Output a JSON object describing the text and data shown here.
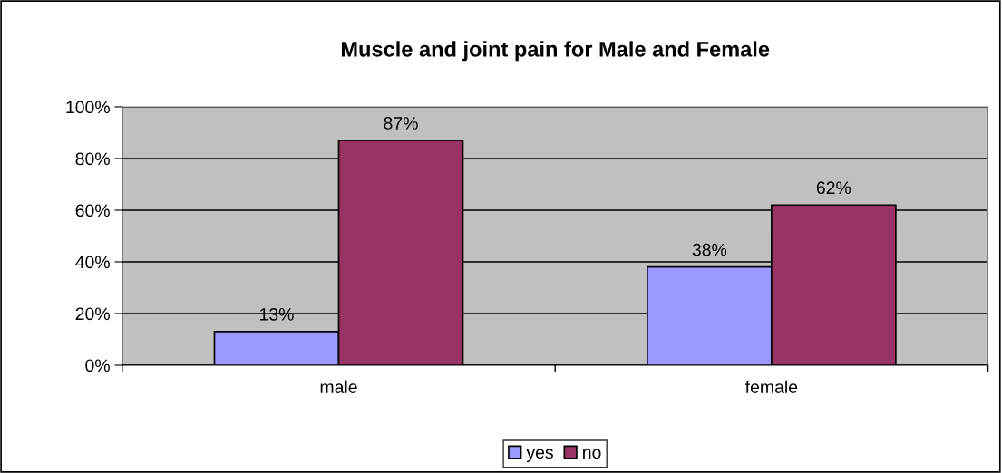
{
  "chart_data": {
    "type": "bar",
    "title": "Muscle and joint pain for Male and Female",
    "categories": [
      "male",
      "female"
    ],
    "series": [
      {
        "name": "yes",
        "color": "#9999ff",
        "values": [
          13,
          38
        ],
        "value_labels": [
          "13%",
          "38%"
        ]
      },
      {
        "name": "no",
        "color": "#993366",
        "values": [
          87,
          62
        ],
        "value_labels": [
          "87%",
          "62%"
        ]
      }
    ],
    "ylim": [
      0,
      100
    ],
    "yticks": [
      {
        "value": 0,
        "label": "0%"
      },
      {
        "value": 20,
        "label": "20%"
      },
      {
        "value": 40,
        "label": "40%"
      },
      {
        "value": 60,
        "label": "60%"
      },
      {
        "value": 80,
        "label": "80%"
      },
      {
        "value": 100,
        "label": "100%"
      }
    ],
    "grid": "y",
    "legend": "bottom"
  }
}
